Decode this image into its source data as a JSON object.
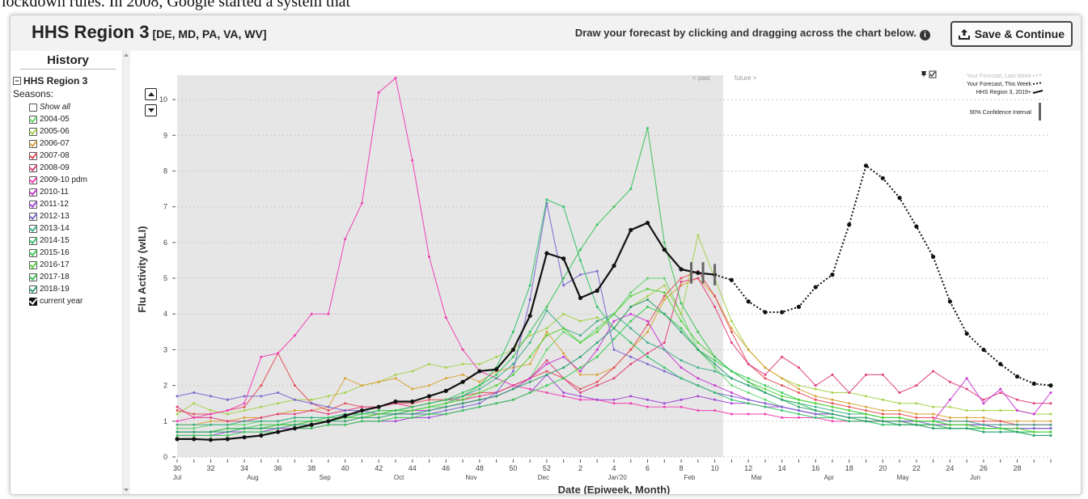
{
  "article_fragment": "lockdown rules. In 2008, Google started a system that",
  "header": {
    "region_title": "HHS Region 3",
    "region_states": "[DE, MD, PA, VA, WV]",
    "instruction": "Draw your forecast by clicking and dragging across the chart below.",
    "info_icon": "i",
    "save_label": "Save & Continue"
  },
  "sidebar": {
    "title": "History",
    "root_label": "HHS Region 3",
    "seasons_label": "Seasons:",
    "show_all": "Show all",
    "seasons": [
      {
        "label": "2004-05",
        "color": "#5fd36a"
      },
      {
        "label": "2005-06",
        "color": "#a5d24a"
      },
      {
        "label": "2006-07",
        "color": "#d9a438"
      },
      {
        "label": "2007-08",
        "color": "#e3505a"
      },
      {
        "label": "2008-09",
        "color": "#e0407e"
      },
      {
        "label": "2009-10 pdm",
        "color": "#ee3fb4"
      },
      {
        "label": "2010-11",
        "color": "#c83ad0"
      },
      {
        "label": "2011-12",
        "color": "#a146d6"
      },
      {
        "label": "2012-13",
        "color": "#7b66d0"
      },
      {
        "label": "2013-14",
        "color": "#3fae88"
      },
      {
        "label": "2014-15",
        "color": "#33c26a"
      },
      {
        "label": "2015-16",
        "color": "#38cc52"
      },
      {
        "label": "2016-17",
        "color": "#55d13a"
      },
      {
        "label": "2017-18",
        "color": "#3dc25a"
      },
      {
        "label": "2018-19",
        "color": "#2ea070"
      }
    ],
    "current_year_label": "current year"
  },
  "chart_data": {
    "type": "line",
    "xlabel": "Date (Epiweek, Month)",
    "ylabel": "Flu Activity (wILI)",
    "ylim": [
      0,
      10.5
    ],
    "y_ticks": [
      "0",
      "1",
      "2",
      "3",
      "4",
      "5",
      "6",
      "7",
      "8",
      "9",
      "10"
    ],
    "x_index_range": [
      0,
      52
    ],
    "x_ticks": [
      {
        "i": 0,
        "label": "30"
      },
      {
        "i": 2,
        "label": "32"
      },
      {
        "i": 4,
        "label": "34"
      },
      {
        "i": 6,
        "label": "36"
      },
      {
        "i": 8,
        "label": "38"
      },
      {
        "i": 10,
        "label": "40"
      },
      {
        "i": 12,
        "label": "42"
      },
      {
        "i": 14,
        "label": "44"
      },
      {
        "i": 16,
        "label": "46"
      },
      {
        "i": 18,
        "label": "48"
      },
      {
        "i": 20,
        "label": "50"
      },
      {
        "i": 22,
        "label": "52"
      },
      {
        "i": 24,
        "label": "2"
      },
      {
        "i": 26,
        "label": "4"
      },
      {
        "i": 28,
        "label": "6"
      },
      {
        "i": 30,
        "label": "8"
      },
      {
        "i": 32,
        "label": "10"
      },
      {
        "i": 34,
        "label": "12"
      },
      {
        "i": 36,
        "label": "14"
      },
      {
        "i": 38,
        "label": "16"
      },
      {
        "i": 40,
        "label": "18"
      },
      {
        "i": 42,
        "label": "20"
      },
      {
        "i": 44,
        "label": "22"
      },
      {
        "i": 46,
        "label": "24"
      },
      {
        "i": 48,
        "label": "26"
      },
      {
        "i": 50,
        "label": "28"
      }
    ],
    "month_labels": [
      {
        "i": 0,
        "label": "Jul"
      },
      {
        "i": 4.5,
        "label": "Aug"
      },
      {
        "i": 8.8,
        "label": "Sep"
      },
      {
        "i": 13.2,
        "label": "Oct"
      },
      {
        "i": 17.5,
        "label": "Nov"
      },
      {
        "i": 21.8,
        "label": "Dec"
      },
      {
        "i": 26.2,
        "label": "Jan'20"
      },
      {
        "i": 30.5,
        "label": "Feb"
      },
      {
        "i": 34.5,
        "label": "Mar"
      },
      {
        "i": 38.8,
        "label": "Apr"
      },
      {
        "i": 43.2,
        "label": "May"
      },
      {
        "i": 47.5,
        "label": "Jun"
      }
    ],
    "past_label": "< past",
    "future_label": "future >",
    "past_end_index": 32.5,
    "legend": {
      "last_week": "Your Forecast, Last Week",
      "this_week": "Your Forecast, This Week",
      "region": "HHS Region 3, 2019+",
      "ci": "90% Confidence Interval"
    },
    "series": [
      {
        "name": "2004-05",
        "color": "#5fd36a",
        "values": [
          0.8,
          0.8,
          0.9,
          0.9,
          0.9,
          1.0,
          1.0,
          1.1,
          1.1,
          1.1,
          1.2,
          1.2,
          1.2,
          1.3,
          1.3,
          1.4,
          1.4,
          1.5,
          1.6,
          1.7,
          1.9,
          2.2,
          3.0,
          3.5,
          3.2,
          3.6,
          4.0,
          4.6,
          5.0,
          5.0,
          4.0,
          3.0,
          2.5,
          2.0,
          1.8,
          1.6,
          1.4,
          1.3,
          1.2,
          1.1,
          1.0,
          1.0,
          0.9,
          0.9,
          0.9,
          0.8,
          0.8,
          0.8,
          0.8,
          0.8,
          0.8,
          0.8,
          0.8
        ]
      },
      {
        "name": "2005-06",
        "color": "#a5d24a",
        "values": [
          1.2,
          1.5,
          1.3,
          1.2,
          1.3,
          1.4,
          1.5,
          1.6,
          1.6,
          1.7,
          1.8,
          2.0,
          2.1,
          2.3,
          2.4,
          2.6,
          2.5,
          2.6,
          2.6,
          2.8,
          3.0,
          3.4,
          3.6,
          4.0,
          3.8,
          3.9,
          3.6,
          4.2,
          4.5,
          4.8,
          4.0,
          6.2,
          5.0,
          3.8,
          3.0,
          2.5,
          2.2,
          2.0,
          1.9,
          1.8,
          1.8,
          1.7,
          1.6,
          1.5,
          1.5,
          1.4,
          1.4,
          1.3,
          1.3,
          1.3,
          1.3,
          1.2,
          1.2
        ]
      },
      {
        "name": "2006-07",
        "color": "#d9a438",
        "values": [
          0.9,
          0.9,
          1.0,
          1.0,
          1.1,
          1.1,
          1.2,
          1.3,
          1.3,
          1.4,
          2.2,
          2.0,
          2.1,
          2.2,
          1.9,
          2.0,
          2.2,
          2.3,
          2.1,
          2.4,
          2.5,
          2.6,
          3.5,
          2.9,
          2.3,
          2.3,
          2.5,
          3.0,
          3.5,
          4.4,
          4.8,
          5.0,
          4.5,
          3.6,
          3.0,
          2.5,
          2.2,
          1.9,
          1.7,
          1.6,
          1.5,
          1.4,
          1.3,
          1.3,
          1.2,
          1.2,
          1.1,
          1.1,
          1.1,
          1.0,
          1.0,
          1.0,
          1.0
        ]
      },
      {
        "name": "2007-08",
        "color": "#e3505a",
        "values": [
          1.3,
          1.2,
          1.2,
          1.3,
          1.4,
          2.0,
          2.9,
          2.0,
          1.5,
          1.3,
          1.5,
          1.4,
          1.4,
          1.5,
          1.5,
          1.6,
          1.6,
          1.7,
          1.8,
          1.8,
          2.0,
          2.2,
          2.4,
          2.2,
          1.9,
          2.1,
          2.5,
          3.0,
          3.7,
          4.5,
          5.0,
          5.2,
          4.5,
          3.5,
          2.6,
          2.2,
          2.0,
          1.8,
          1.6,
          1.5,
          1.4,
          1.3,
          1.2,
          1.2,
          1.1,
          1.1,
          1.0,
          1.0,
          1.0,
          1.0,
          0.9,
          0.9,
          0.9
        ]
      },
      {
        "name": "2008-09",
        "color": "#e0407e",
        "values": [
          1.4,
          1.1,
          1.1,
          1.0,
          1.0,
          1.1,
          1.2,
          1.2,
          1.3,
          1.2,
          1.3,
          1.4,
          1.4,
          1.5,
          1.4,
          1.5,
          1.6,
          1.6,
          1.7,
          1.8,
          2.0,
          2.2,
          2.7,
          2.2,
          1.8,
          2.0,
          2.2,
          2.6,
          2.9,
          3.2,
          4.9,
          5.0,
          4.2,
          3.2,
          2.6,
          2.3,
          2.8,
          2.5,
          2.0,
          2.3,
          1.8,
          2.3,
          2.3,
          1.8,
          2.0,
          2.4,
          2.1,
          1.9,
          1.6,
          1.8,
          1.6,
          1.5,
          1.5
        ]
      },
      {
        "name": "2009-10 pdm",
        "color": "#ee3fb4",
        "values": [
          1.0,
          1.1,
          1.2,
          1.3,
          1.5,
          2.8,
          2.9,
          3.4,
          4.0,
          4.0,
          6.1,
          7.1,
          10.2,
          10.6,
          8.3,
          5.6,
          3.9,
          3.0,
          2.4,
          2.2,
          2.0,
          1.9,
          1.8,
          1.7,
          1.6,
          1.6,
          1.5,
          1.5,
          1.4,
          1.4,
          1.4,
          1.3,
          1.3,
          1.2,
          1.2,
          1.2,
          1.1,
          1.1,
          1.1,
          1.0,
          1.0,
          1.0,
          1.0,
          1.0,
          0.9,
          0.9,
          0.9,
          0.9,
          0.9,
          0.9,
          0.9,
          0.9,
          0.9
        ]
      },
      {
        "name": "2010-11",
        "color": "#c83ad0",
        "values": [
          0.7,
          0.7,
          0.7,
          0.8,
          0.8,
          0.8,
          0.9,
          0.9,
          1.0,
          1.0,
          1.1,
          1.1,
          1.2,
          1.2,
          1.3,
          1.3,
          1.4,
          1.5,
          1.6,
          1.7,
          1.9,
          2.2,
          2.6,
          2.8,
          2.4,
          3.0,
          3.8,
          4.0,
          3.8,
          3.0,
          2.5,
          2.2,
          2.0,
          1.8,
          1.6,
          1.5,
          1.4,
          1.3,
          1.2,
          1.2,
          1.1,
          1.1,
          1.0,
          1.0,
          1.0,
          1.0,
          1.6,
          2.2,
          1.5,
          1.9,
          1.3,
          1.2,
          1.8
        ]
      },
      {
        "name": "2011-12",
        "color": "#a146d6",
        "values": [
          0.6,
          0.6,
          0.6,
          0.7,
          0.7,
          0.7,
          0.8,
          0.8,
          0.8,
          0.9,
          0.9,
          1.0,
          1.0,
          1.0,
          1.1,
          1.1,
          1.2,
          1.3,
          1.4,
          1.5,
          1.6,
          1.8,
          2.3,
          1.8,
          1.7,
          1.6,
          1.6,
          1.7,
          1.6,
          1.5,
          1.6,
          1.7,
          1.6,
          1.5,
          1.5,
          1.4,
          1.4,
          1.3,
          1.2,
          1.2,
          1.1,
          1.1,
          1.0,
          1.0,
          1.0,
          1.0,
          0.9,
          0.9,
          0.9,
          0.8,
          0.8,
          0.8,
          0.8
        ]
      },
      {
        "name": "2012-13",
        "color": "#7b66d0",
        "values": [
          1.7,
          1.8,
          1.7,
          1.6,
          1.7,
          1.7,
          1.8,
          1.6,
          1.5,
          1.4,
          1.3,
          1.3,
          1.2,
          1.2,
          1.2,
          1.2,
          1.3,
          1.4,
          1.5,
          1.8,
          2.4,
          4.4,
          7.1,
          4.8,
          5.1,
          5.2,
          3.0,
          2.8,
          2.6,
          2.4,
          2.2,
          2.0,
          1.8,
          1.7,
          1.6,
          1.5,
          1.4,
          1.3,
          1.2,
          1.2,
          1.1,
          1.1,
          1.0,
          1.0,
          1.0,
          0.9,
          0.9,
          0.9,
          0.9,
          0.8,
          0.8,
          0.8,
          0.8
        ]
      },
      {
        "name": "2013-14",
        "color": "#3fae88",
        "values": [
          0.9,
          0.9,
          0.9,
          0.9,
          1.0,
          1.0,
          1.0,
          1.1,
          1.1,
          1.1,
          1.2,
          1.2,
          1.3,
          1.3,
          1.4,
          1.5,
          1.6,
          1.7,
          1.9,
          2.2,
          2.6,
          3.2,
          4.1,
          3.6,
          3.4,
          3.8,
          4.0,
          3.6,
          3.2,
          3.0,
          2.7,
          2.5,
          2.4,
          2.2,
          2.0,
          1.8,
          1.6,
          1.5,
          1.4,
          1.3,
          1.2,
          1.2,
          1.1,
          1.1,
          1.0,
          1.0,
          1.0,
          1.0,
          0.9,
          0.9,
          0.9,
          0.9,
          0.9
        ]
      },
      {
        "name": "2014-15",
        "color": "#33c26a",
        "values": [
          0.7,
          0.7,
          0.7,
          0.8,
          0.8,
          0.8,
          0.9,
          0.9,
          1.0,
          1.0,
          1.1,
          1.1,
          1.2,
          1.2,
          1.3,
          1.4,
          1.5,
          1.7,
          2.0,
          2.5,
          3.5,
          4.8,
          7.2,
          7.0,
          5.5,
          4.2,
          3.6,
          3.2,
          2.8,
          2.5,
          2.2,
          2.0,
          1.8,
          1.6,
          1.5,
          1.4,
          1.3,
          1.2,
          1.1,
          1.1,
          1.0,
          1.0,
          0.9,
          0.9,
          0.9,
          0.9,
          0.8,
          0.8,
          0.8,
          0.8,
          0.7,
          0.7,
          0.7
        ]
      },
      {
        "name": "2015-16",
        "color": "#38cc52",
        "values": [
          0.6,
          0.6,
          0.6,
          0.6,
          0.7,
          0.7,
          0.7,
          0.8,
          0.8,
          0.9,
          0.9,
          1.0,
          1.0,
          1.1,
          1.1,
          1.2,
          1.2,
          1.3,
          1.4,
          1.5,
          1.6,
          1.8,
          2.0,
          2.2,
          2.5,
          2.8,
          3.3,
          3.8,
          4.2,
          4.0,
          3.6,
          3.0,
          2.7,
          2.4,
          2.2,
          2.0,
          1.8,
          1.6,
          1.5,
          1.4,
          1.3,
          1.2,
          1.1,
          1.1,
          1.0,
          1.0,
          0.9,
          0.9,
          0.8,
          0.8,
          0.7,
          0.7,
          0.7
        ]
      },
      {
        "name": "2016-17",
        "color": "#55d13a",
        "values": [
          0.7,
          0.7,
          0.7,
          0.8,
          0.8,
          0.8,
          0.9,
          0.9,
          1.0,
          1.0,
          1.1,
          1.1,
          1.2,
          1.3,
          1.3,
          1.4,
          1.5,
          1.6,
          1.8,
          2.0,
          2.3,
          2.8,
          3.4,
          3.6,
          3.2,
          3.5,
          4.0,
          4.5,
          4.7,
          4.6,
          3.8,
          3.2,
          2.8,
          2.4,
          2.1,
          1.9,
          1.7,
          1.6,
          1.5,
          1.4,
          1.3,
          1.2,
          1.1,
          1.1,
          1.0,
          1.0,
          0.9,
          0.9,
          0.8,
          0.8,
          0.8,
          0.7,
          0.7
        ]
      },
      {
        "name": "2017-18",
        "color": "#3dc25a",
        "values": [
          0.7,
          0.7,
          0.7,
          0.8,
          0.8,
          0.9,
          0.9,
          1.0,
          1.0,
          1.1,
          1.1,
          1.2,
          1.3,
          1.3,
          1.4,
          1.5,
          1.6,
          1.8,
          2.0,
          2.3,
          2.8,
          3.5,
          4.2,
          5.0,
          5.8,
          6.5,
          7.0,
          7.5,
          9.2,
          6.0,
          4.3,
          3.5,
          2.8,
          2.4,
          2.1,
          1.8,
          1.6,
          1.5,
          1.3,
          1.2,
          1.1,
          1.1,
          1.0,
          1.0,
          0.9,
          0.9,
          0.8,
          0.8,
          0.7,
          0.7,
          0.7,
          0.6,
          0.6
        ]
      },
      {
        "name": "2018-19",
        "color": "#2ea070",
        "values": [
          0.7,
          0.7,
          0.7,
          0.7,
          0.8,
          0.8,
          0.8,
          0.9,
          0.9,
          1.0,
          1.0,
          1.1,
          1.1,
          1.2,
          1.2,
          1.3,
          1.4,
          1.5,
          1.6,
          1.7,
          1.9,
          2.1,
          2.3,
          2.5,
          2.8,
          3.2,
          3.6,
          4.2,
          4.4,
          4.0,
          3.5,
          3.0,
          2.6,
          2.2,
          2.0,
          1.8,
          1.6,
          1.4,
          1.3,
          1.2,
          1.1,
          1.0,
          1.0,
          0.9,
          0.9,
          0.8,
          0.8,
          0.8,
          0.7,
          0.7,
          0.7,
          0.6,
          0.6
        ]
      },
      {
        "name": "current year",
        "color": "#111111",
        "values": [
          0.5,
          0.5,
          0.48,
          0.5,
          0.55,
          0.6,
          0.7,
          0.8,
          0.9,
          1.0,
          1.15,
          1.3,
          1.4,
          1.55,
          1.55,
          1.7,
          1.85,
          2.1,
          2.4,
          2.45,
          3.0,
          3.95,
          5.7,
          5.55,
          4.45,
          4.65,
          5.35,
          6.35,
          6.55,
          5.8,
          5.25,
          5.15,
          5.1
        ]
      }
    ],
    "forecast": {
      "start_index": 32,
      "values": [
        5.1,
        4.95,
        4.35,
        4.05,
        4.05,
        4.2,
        4.75,
        5.1,
        6.5,
        8.15,
        7.8,
        7.25,
        6.45,
        5.6,
        4.35,
        3.45,
        3.0,
        2.6,
        2.25,
        2.05,
        2.0
      ]
    }
  }
}
